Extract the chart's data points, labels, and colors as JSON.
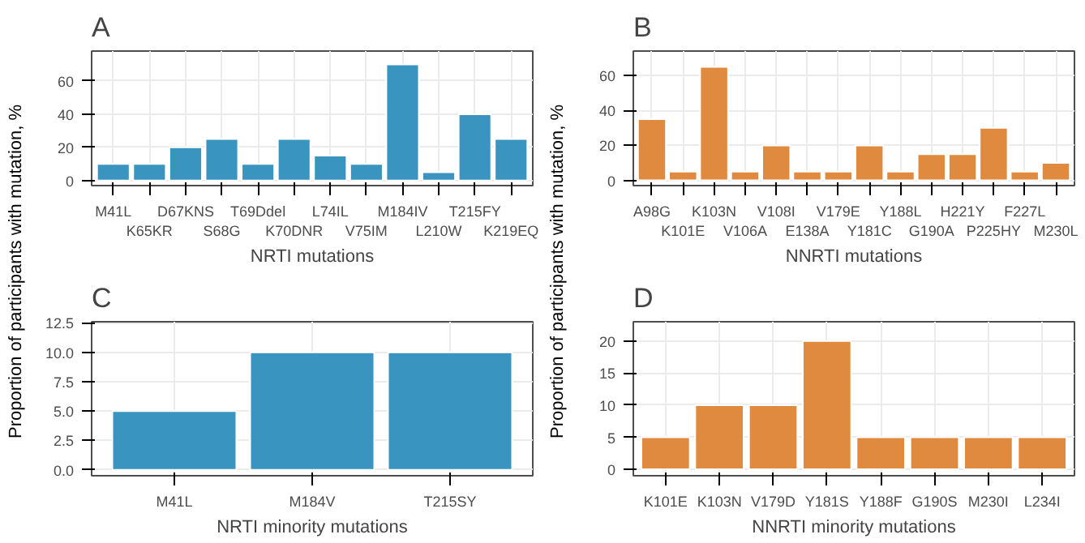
{
  "chart_data": [
    {
      "type": "bar",
      "title": "A",
      "xlabel": "NRTI mutations",
      "ylabel": "Proportion of participants with mutation, %",
      "categories": [
        "M41L",
        "K65KR",
        "D67KNS",
        "S68G",
        "T69Ddel",
        "K70DNR",
        "L74IL",
        "V75IM",
        "M184IV",
        "L210W",
        "T215FY",
        "K219EQ"
      ],
      "values": [
        10,
        10,
        20,
        25,
        10,
        25,
        15,
        10,
        70,
        5,
        40,
        25
      ],
      "color": "#3a94c0",
      "ylim": [
        -3,
        78
      ],
      "yticks": [
        0,
        20,
        40,
        60
      ],
      "grid": true
    },
    {
      "type": "bar",
      "title": "B",
      "xlabel": "NNRTI mutations",
      "ylabel": "Proportion of participants with mutation, %",
      "categories": [
        "A98G",
        "K101E",
        "K103N",
        "V106A",
        "V108I",
        "E138A",
        "V179E",
        "Y181C",
        "Y188L",
        "G190A",
        "H221Y",
        "P225HY",
        "F227L",
        "M230L"
      ],
      "values": [
        35,
        5,
        65,
        5,
        20,
        5,
        5,
        20,
        5,
        15,
        15,
        30,
        5,
        10
      ],
      "color": "#e08a3f",
      "ylim": [
        -3,
        74
      ],
      "yticks": [
        0,
        20,
        40,
        60
      ],
      "grid": true
    },
    {
      "type": "bar",
      "title": "C",
      "xlabel": "NRTI minority mutations",
      "categories": [
        "M41L",
        "M184V",
        "T215SY"
      ],
      "values": [
        5,
        10,
        10
      ],
      "color": "#3a94c0",
      "ylim": [
        -0.5,
        12.6
      ],
      "yticks": [
        {
          "value": 0,
          "label": "0.0"
        },
        {
          "value": 2.5,
          "label": "2.5"
        },
        {
          "value": 5,
          "label": "5.0"
        },
        {
          "value": 7.5,
          "label": "7.5"
        },
        {
          "value": 10,
          "label": "10.0"
        },
        {
          "value": 12.5,
          "label": "12.5"
        }
      ],
      "grid": true
    },
    {
      "type": "bar",
      "title": "D",
      "xlabel": "NNRTI minority mutations",
      "categories": [
        "K101E",
        "K103N",
        "V179D",
        "Y181S",
        "Y188F",
        "G190S",
        "M230I",
        "L234I"
      ],
      "values": [
        5,
        10,
        10,
        20,
        5,
        5,
        5,
        5
      ],
      "color": "#e08a3f",
      "ylim": [
        -1,
        23
      ],
      "yticks": [
        0,
        5,
        10,
        15,
        20
      ],
      "grid": true
    }
  ]
}
